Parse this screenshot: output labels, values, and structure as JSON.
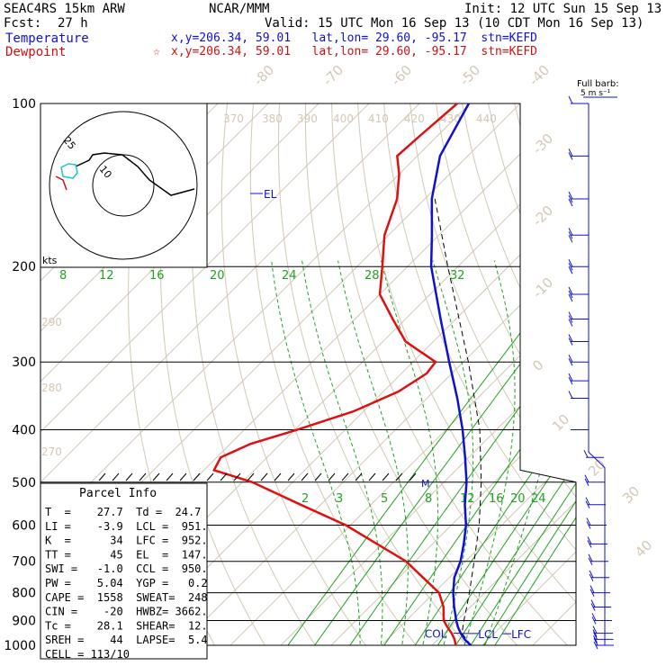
{
  "header": {
    "model": "SEAC4RS 15km ARW",
    "org": "NCAR/MMM",
    "init": "Init: 12 UTC Sun 15 Sep 13",
    "fcst_label": "Fcst:",
    "fcst_value": "27 h",
    "valid": "Valid: 15 UTC Mon 16 Sep 13 (10 CDT Mon 16 Sep 13)",
    "temperature_label": "Temperature",
    "dewpoint_label": "Dewpoint",
    "temperature_loc": "x,y=206.34, 59.01   lat,lon= 29.60, -95.17  stn=KEFD",
    "dewpoint_loc": "x,y=206.34, 59.01   lat,lon= 29.60, -95.17  stn=KEFD",
    "dewpoint_marker": "☆"
  },
  "chart_data": {
    "type": "line",
    "pressure_levels": [
      {
        "p": 100,
        "label": "100"
      },
      {
        "p": 200,
        "label": "200"
      },
      {
        "p": 300,
        "label": "300"
      },
      {
        "p": 400,
        "label": "400"
      },
      {
        "p": 500,
        "label": "500"
      },
      {
        "p": 600,
        "label": "600"
      },
      {
        "p": 700,
        "label": "700"
      },
      {
        "p": 800,
        "label": "800"
      },
      {
        "p": 900,
        "label": "900"
      },
      {
        "p": 1000,
        "label": "1000"
      }
    ],
    "temperature_labels": [
      {
        "t": -80,
        "label": "-80"
      },
      {
        "t": -70,
        "label": "-70"
      },
      {
        "t": -60,
        "label": "-60"
      },
      {
        "t": -50,
        "label": "-50"
      },
      {
        "t": -40,
        "label": "-40"
      },
      {
        "t": -30,
        "label": "-30"
      },
      {
        "t": -20,
        "label": "-20"
      },
      {
        "t": -10,
        "label": "-10"
      },
      {
        "t": 0,
        "label": "0"
      },
      {
        "t": 10,
        "label": "10"
      },
      {
        "t": 20,
        "label": "20"
      },
      {
        "t": 30,
        "label": "30"
      },
      {
        "t": 40,
        "label": "40"
      }
    ],
    "theta_labels": [
      {
        "theta": 370,
        "label": "370"
      },
      {
        "theta": 380,
        "label": "380"
      },
      {
        "theta": 390,
        "label": "390"
      },
      {
        "theta": 400,
        "label": "400"
      },
      {
        "theta": 410,
        "label": "410"
      },
      {
        "theta": 420,
        "label": "420"
      },
      {
        "theta": 430,
        "label": "430"
      },
      {
        "theta": 440,
        "label": "440"
      },
      {
        "theta": 290,
        "label": "290"
      },
      {
        "theta": 280,
        "label": "280"
      },
      {
        "theta": 270,
        "label": "270"
      }
    ],
    "mixing_ratio_upper_labels": [
      {
        "w": 8,
        "label": "8"
      },
      {
        "w": 12,
        "label": "12"
      },
      {
        "w": 16,
        "label": "16"
      },
      {
        "w": 20,
        "label": "20"
      },
      {
        "w": 24,
        "label": "24"
      },
      {
        "w": 28,
        "label": "28"
      },
      {
        "w": 32,
        "label": "32"
      }
    ],
    "mixing_ratio_lower_labels": [
      {
        "w": 2,
        "label": "2"
      },
      {
        "w": 3,
        "label": "3"
      },
      {
        "w": 5,
        "label": "5"
      },
      {
        "w": 8,
        "label": "8"
      },
      {
        "w": 12,
        "label": "12"
      },
      {
        "w": 16,
        "label": "16"
      },
      {
        "w": 20,
        "label": "20"
      },
      {
        "w": 24,
        "label": "24"
      }
    ],
    "series": [
      {
        "name": "Temperature",
        "color": "#1010d0",
        "points": [
          [
            1000,
            27.7
          ],
          [
            975,
            25.3
          ],
          [
            950,
            23.3
          ],
          [
            925,
            21.5
          ],
          [
            900,
            19.9
          ],
          [
            850,
            16.8
          ],
          [
            800,
            13.8
          ],
          [
            750,
            11.0
          ],
          [
            700,
            9.0
          ],
          [
            650,
            6.2
          ],
          [
            600,
            2.9
          ],
          [
            550,
            -1.4
          ],
          [
            500,
            -5.5
          ],
          [
            450,
            -10.7
          ],
          [
            400,
            -16.7
          ],
          [
            350,
            -24.0
          ],
          [
            300,
            -32.8
          ],
          [
            250,
            -43.0
          ],
          [
            200,
            -55.3
          ],
          [
            175,
            -61.4
          ],
          [
            150,
            -68.6
          ],
          [
            125,
            -75.5
          ],
          [
            100,
            -80.2
          ]
        ]
      },
      {
        "name": "Dewpoint",
        "color": "#e01010",
        "points": [
          [
            1000,
            24.7
          ],
          [
            975,
            23.3
          ],
          [
            950,
            21.5
          ],
          [
            925,
            19.4
          ],
          [
            900,
            17.4
          ],
          [
            850,
            14.7
          ],
          [
            800,
            11.0
          ],
          [
            750,
            4.8
          ],
          [
            700,
            -1.8
          ],
          [
            650,
            -11.0
          ],
          [
            600,
            -21.0
          ],
          [
            550,
            -34.0
          ],
          [
            500,
            -48.0
          ],
          [
            475,
            -58.0
          ],
          [
            450,
            -59.2
          ],
          [
            425,
            -56.0
          ],
          [
            400,
            -49.5
          ],
          [
            370,
            -42.0
          ],
          [
            340,
            -37.0
          ],
          [
            315,
            -35.0
          ],
          [
            300,
            -35.5
          ],
          [
            275,
            -45.5
          ],
          [
            250,
            -52.5
          ],
          [
            225,
            -60.0
          ],
          [
            200,
            -65.0
          ],
          [
            175,
            -70.8
          ],
          [
            150,
            -75.5
          ],
          [
            135,
            -80.0
          ],
          [
            125,
            -84.0
          ],
          [
            115,
            -83.5
          ],
          [
            100,
            -82.5
          ]
        ]
      }
    ],
    "parcel_path": [
      [
        1000,
        27.7
      ],
      [
        960,
        24.4
      ],
      [
        951,
        23.6
      ],
      [
        900,
        21.4
      ],
      [
        850,
        19.3
      ],
      [
        800,
        17.0
      ],
      [
        700,
        11.7
      ],
      [
        600,
        5.5
      ],
      [
        500,
        -2.6
      ],
      [
        400,
        -13.3
      ],
      [
        300,
        -29.0
      ],
      [
        200,
        -52.0
      ],
      [
        150,
        -68.0
      ]
    ],
    "level_markers": [
      {
        "label": "COL",
        "p": 950,
        "t": 23.3
      },
      {
        "label": "LCL",
        "p": 951,
        "t": 23.6
      },
      {
        "label": "LFC",
        "p": 952,
        "t": 23.8
      },
      {
        "label": "EL",
        "p": 147,
        "t": -69.0
      },
      {
        "label": "M",
        "p": 500,
        "t": -2.6
      }
    ],
    "hodograph": {
      "ring_label": "25",
      "ring_label_2": "10",
      "units_label": "kts"
    },
    "wind_barb_key": {
      "title": "Full barb:",
      "value": "5 m s⁻¹"
    },
    "wind_barbs": [
      {
        "p": 100,
        "flags": 1
      },
      {
        "p": 125,
        "flags": 2
      },
      {
        "p": 150,
        "flags": 3
      },
      {
        "p": 175,
        "flags": 3
      },
      {
        "p": 200,
        "flags": 3
      },
      {
        "p": 225,
        "flags": 3
      },
      {
        "p": 250,
        "flags": 3
      },
      {
        "p": 275,
        "flags": 2
      },
      {
        "p": 300,
        "flags": 2
      },
      {
        "p": 325,
        "flags": 2
      },
      {
        "p": 350,
        "flags": 1
      },
      {
        "p": 400,
        "flags": 0
      },
      {
        "p": 450,
        "flags": 1
      },
      {
        "p": 500,
        "flags": 2
      },
      {
        "p": 550,
        "flags": 2
      },
      {
        "p": 600,
        "flags": 2
      },
      {
        "p": 650,
        "flags": 2
      },
      {
        "p": 700,
        "flags": 2
      },
      {
        "p": 750,
        "flags": 2
      },
      {
        "p": 800,
        "flags": 2
      },
      {
        "p": 850,
        "flags": 2
      },
      {
        "p": 900,
        "flags": 2
      },
      {
        "p": 950,
        "flags": 2
      },
      {
        "p": 975,
        "flags": 2
      },
      {
        "p": 1000,
        "flags": 2
      }
    ]
  },
  "parcel_info": {
    "title": "Parcel Info",
    "rows": [
      "T  =    27.7  Td =  24.7",
      "LI =    -3.9  LCL =  951.",
      "K  =      34  LFC =  952.",
      "TT =      45  EL  =  147.",
      "SWI =   -1.0  CCL =  950.",
      "PW =    5.04  YGP =   0.2",
      "CAPE =  1558  SWEAT=  248",
      "CIN =    -20  HWBZ= 3662.",
      "Tc =    28.1  SHEAR=  12.",
      "SREH =    44  LAPSE=  5.4",
      "CELL = 113/10"
    ]
  }
}
